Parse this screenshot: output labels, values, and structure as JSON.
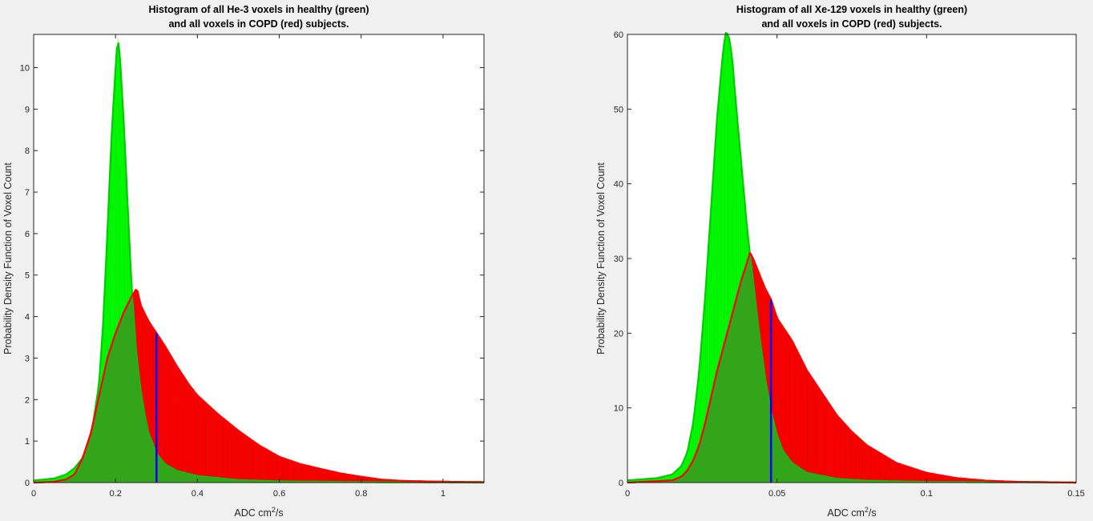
{
  "chart_data": [
    {
      "type": "area",
      "title": [
        "Histogram of all He-3 voxels in healthy (green)",
        "and all voxels in COPD (red) subjects."
      ],
      "xlabel": {
        "prefix": "ADC cm",
        "sup": "2",
        "suffix": "/s"
      },
      "ylabel": "Probability Density Function of Voxel Count",
      "xlim": [
        0,
        1.1
      ],
      "ylim": [
        0,
        10.8
      ],
      "xticks": [
        0,
        0.2,
        0.4,
        0.6,
        0.8,
        1
      ],
      "xtick_labels": [
        "0",
        "0.2",
        "0.4",
        "0.6",
        "0.8",
        "1"
      ],
      "yticks": [
        0,
        1,
        2,
        3,
        4,
        5,
        6,
        7,
        8,
        9,
        10
      ],
      "ytick_labels": [
        "0",
        "1",
        "2",
        "3",
        "4",
        "5",
        "6",
        "7",
        "8",
        "9",
        "10"
      ],
      "threshold": {
        "x": 0.3,
        "y": 3.6,
        "color": "#0000ff"
      },
      "series": [
        {
          "color": "#00ff00",
          "edge": "#00cc00",
          "x": [
            0,
            0.05,
            0.08,
            0.1,
            0.12,
            0.14,
            0.16,
            0.17,
            0.18,
            0.19,
            0.2,
            0.205,
            0.21,
            0.22,
            0.23,
            0.24,
            0.25,
            0.26,
            0.27,
            0.28,
            0.29,
            0.3,
            0.32,
            0.35,
            0.4,
            0.5,
            0.6,
            0.8,
            1.1
          ],
          "y": [
            0.05,
            0.1,
            0.2,
            0.35,
            0.6,
            1.1,
            2.4,
            3.9,
            6.0,
            8.3,
            10.0,
            10.75,
            10.4,
            8.7,
            6.6,
            4.6,
            3.2,
            2.3,
            1.7,
            1.2,
            0.95,
            0.7,
            0.45,
            0.28,
            0.16,
            0.06,
            0.03,
            0.01,
            0.0
          ]
        },
        {
          "color": "#ff0000",
          "edge": "#ff0000",
          "x": [
            0,
            0.05,
            0.08,
            0.1,
            0.12,
            0.14,
            0.16,
            0.18,
            0.2,
            0.22,
            0.24,
            0.25,
            0.255,
            0.26,
            0.27,
            0.28,
            0.29,
            0.3,
            0.32,
            0.35,
            0.38,
            0.4,
            0.45,
            0.5,
            0.55,
            0.6,
            0.65,
            0.7,
            0.75,
            0.8,
            0.85,
            0.9,
            1.0,
            1.1
          ],
          "y": [
            0.0,
            0.02,
            0.08,
            0.2,
            0.6,
            1.2,
            2.1,
            3.0,
            3.6,
            4.1,
            4.5,
            4.65,
            4.6,
            4.3,
            4.1,
            3.9,
            3.75,
            3.6,
            3.3,
            2.8,
            2.35,
            2.1,
            1.65,
            1.25,
            0.9,
            0.62,
            0.45,
            0.33,
            0.22,
            0.14,
            0.07,
            0.04,
            0.02,
            0.01
          ]
        }
      ]
    },
    {
      "type": "area",
      "title": [
        "Histogram of all Xe-129 voxels in healthy (green)",
        "and all voxels in COPD (red) subjects."
      ],
      "xlabel": {
        "prefix": "ADC cm",
        "sup": "2",
        "suffix": "/s"
      },
      "ylabel": "Probability Density Function of Voxel Count",
      "xlim": [
        0,
        0.15
      ],
      "ylim": [
        0,
        60
      ],
      "xticks": [
        0,
        0.05,
        0.1,
        0.15
      ],
      "xtick_labels": [
        "0",
        "0.05",
        "0.1",
        "0.15"
      ],
      "yticks": [
        0,
        10,
        20,
        30,
        40,
        50,
        60
      ],
      "ytick_labels": [
        "0",
        "10",
        "20",
        "30",
        "40",
        "50",
        "60"
      ],
      "threshold": {
        "x": 0.048,
        "y": 24.5,
        "color": "#0000ff"
      },
      "series": [
        {
          "color": "#00ff00",
          "edge": "#00cc00",
          "x": [
            0,
            0.01,
            0.015,
            0.018,
            0.02,
            0.022,
            0.024,
            0.026,
            0.028,
            0.03,
            0.032,
            0.033,
            0.034,
            0.035,
            0.036,
            0.038,
            0.04,
            0.042,
            0.044,
            0.046,
            0.048,
            0.05,
            0.052,
            0.055,
            0.06,
            0.07,
            0.08,
            0.1,
            0.15
          ],
          "y": [
            0.3,
            0.6,
            1.1,
            2.2,
            4.0,
            8.0,
            15.0,
            25.0,
            37.0,
            49.0,
            58.0,
            60.5,
            59.5,
            57.0,
            52.0,
            43.0,
            34.0,
            27.0,
            20.0,
            14.0,
            9.5,
            6.3,
            4.2,
            2.6,
            1.3,
            0.5,
            0.25,
            0.08,
            0.0
          ]
        },
        {
          "color": "#ff0000",
          "edge": "#ff0000",
          "x": [
            0,
            0.015,
            0.018,
            0.02,
            0.022,
            0.024,
            0.026,
            0.028,
            0.03,
            0.032,
            0.034,
            0.036,
            0.038,
            0.04,
            0.041,
            0.042,
            0.044,
            0.046,
            0.048,
            0.05,
            0.055,
            0.06,
            0.065,
            0.07,
            0.075,
            0.08,
            0.09,
            0.1,
            0.11,
            0.12,
            0.13,
            0.15
          ],
          "y": [
            0.0,
            0.3,
            0.8,
            1.6,
            3.0,
            5.0,
            8.0,
            11.5,
            15.0,
            18.0,
            21.0,
            24.0,
            27.0,
            29.5,
            30.8,
            30.0,
            28.0,
            26.0,
            24.5,
            22.0,
            19.0,
            15.0,
            12.0,
            9.0,
            6.8,
            5.0,
            2.6,
            1.3,
            0.6,
            0.25,
            0.1,
            0.0
          ]
        }
      ]
    }
  ]
}
